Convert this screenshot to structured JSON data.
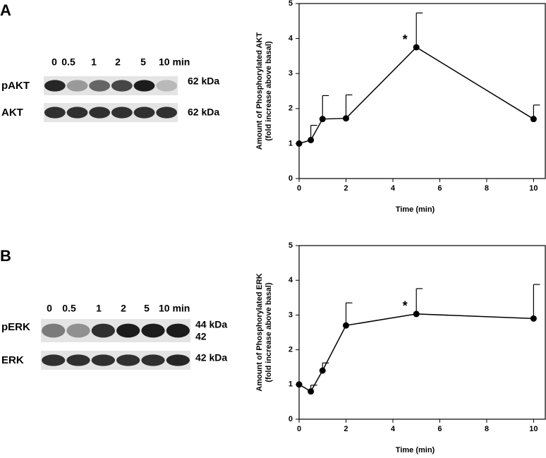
{
  "chart_data": [
    {
      "type": "line",
      "panel": "A",
      "x": [
        0,
        0.5,
        1,
        2,
        5,
        10
      ],
      "values": [
        1,
        1.1,
        1.7,
        1.72,
        3.75,
        1.7
      ],
      "errors": [
        0,
        0.42,
        0.67,
        0.67,
        0.98,
        0.4
      ],
      "color": "#000000",
      "xlim": [
        0,
        10.5
      ],
      "xticks": [
        0,
        2,
        4,
        6,
        8,
        10
      ],
      "ylim": [
        0,
        5
      ],
      "yticks": [
        0,
        1,
        2,
        3,
        4,
        5
      ],
      "xlabel": "Time (min)",
      "ylabel": [
        "Amount of Phosphorylated AKT",
        "(fold increase above basal)"
      ],
      "annotations": [
        {
          "text": "*",
          "x": 5
        }
      ]
    },
    {
      "type": "line",
      "panel": "B",
      "x": [
        0,
        0.5,
        1,
        2,
        5,
        10
      ],
      "values": [
        1,
        0.8,
        1.4,
        2.7,
        3.03,
        2.9
      ],
      "errors": [
        0,
        0.18,
        0.22,
        0.65,
        0.73,
        0.98
      ],
      "color": "#000000",
      "xlim": [
        0,
        10.5
      ],
      "xticks": [
        0,
        2,
        4,
        6,
        8,
        10
      ],
      "ylim": [
        0,
        5
      ],
      "yticks": [
        0,
        1,
        2,
        3,
        4,
        5
      ],
      "xlabel": "Time (min)",
      "ylabel": [
        "Amount of Phosphorylated ERK",
        "(fold increase above basal)"
      ],
      "annotations": [
        {
          "text": "*",
          "x": 5
        }
      ]
    }
  ],
  "blots": [
    {
      "lanes": [
        "0",
        "0.5",
        "1",
        "2",
        "5",
        "10 min"
      ],
      "rows": [
        {
          "name": "pAKT",
          "size": [
            "62 kDa"
          ]
        },
        {
          "name": "AKT",
          "size": [
            "62 kDa"
          ]
        }
      ]
    },
    {
      "lanes": [
        "0",
        "0.5",
        "1",
        "2",
        "5",
        "10 min"
      ],
      "rows": [
        {
          "name": "pERK",
          "size": [
            "44 kDa",
            "42"
          ]
        },
        {
          "name": "ERK",
          "size": [
            "42 kDa"
          ]
        }
      ]
    }
  ]
}
